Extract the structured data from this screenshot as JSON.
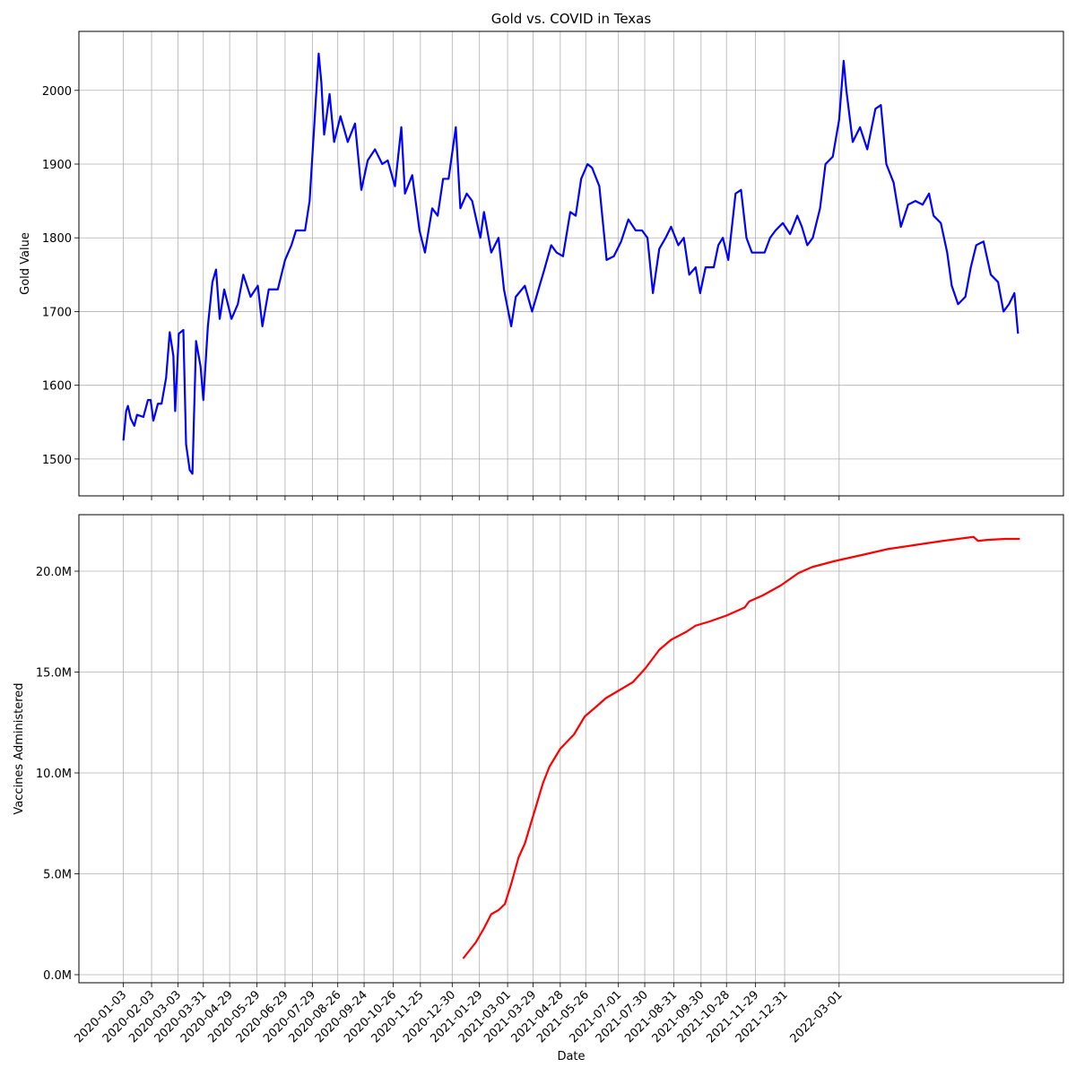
{
  "chart_data": [
    {
      "type": "line",
      "title": "Gold vs. COVID in Texas",
      "ylabel": "Gold Value",
      "grid": true,
      "xlim": [
        "2019-11-15",
        "2022-11-03"
      ],
      "xticks": [
        "2020-01-03",
        "2020-02-03",
        "2020-03-03",
        "2020-03-31",
        "2020-04-29",
        "2020-05-29",
        "2020-06-29",
        "2020-07-29",
        "2020-08-26",
        "2020-09-24",
        "2020-10-26",
        "2020-11-25",
        "2020-12-30",
        "2021-01-29",
        "2021-03-01",
        "2021-03-29",
        "2021-04-28",
        "2021-05-26",
        "2021-07-01",
        "2021-07-30",
        "2021-08-31",
        "2021-09-30",
        "2021-10-28",
        "2021-11-29",
        "2021-12-31",
        "2022-03-01"
      ],
      "ylim": [
        1450,
        2080
      ],
      "yticks": [
        1500,
        1600,
        1700,
        1800,
        1900,
        2000
      ],
      "x": [
        "2020-01-03",
        "2020-01-06",
        "2020-01-08",
        "2020-01-11",
        "2020-01-15",
        "2020-01-18",
        "2020-01-25",
        "2020-01-30",
        "2020-02-02",
        "2020-02-05",
        "2020-02-10",
        "2020-02-14",
        "2020-02-19",
        "2020-02-23",
        "2020-02-27",
        "2020-02-29",
        "2020-03-04",
        "2020-03-09",
        "2020-03-12",
        "2020-03-16",
        "2020-03-19",
        "2020-03-23",
        "2020-03-28",
        "2020-03-31",
        "2020-04-05",
        "2020-04-10",
        "2020-04-14",
        "2020-04-18",
        "2020-04-23",
        "2020-05-01",
        "2020-05-08",
        "2020-05-14",
        "2020-05-22",
        "2020-05-30",
        "2020-06-04",
        "2020-06-11",
        "2020-06-21",
        "2020-06-29",
        "2020-07-06",
        "2020-07-11",
        "2020-07-21",
        "2020-07-26",
        "2020-07-31",
        "2020-08-05",
        "2020-08-08",
        "2020-08-11",
        "2020-08-17",
        "2020-08-22",
        "2020-08-29",
        "2020-09-06",
        "2020-09-14",
        "2020-09-21",
        "2020-09-28",
        "2020-10-06",
        "2020-10-14",
        "2020-10-20",
        "2020-10-28",
        "2020-11-04",
        "2020-11-08",
        "2020-11-16",
        "2020-11-24",
        "2020-11-30",
        "2020-12-08",
        "2020-12-14",
        "2020-12-20",
        "2020-12-26",
        "2021-01-03",
        "2021-01-08",
        "2021-01-15",
        "2021-01-21",
        "2021-01-30",
        "2021-02-03",
        "2021-02-11",
        "2021-02-19",
        "2021-02-25",
        "2021-03-05",
        "2021-03-10",
        "2021-03-20",
        "2021-03-28",
        "2021-04-04",
        "2021-04-10",
        "2021-04-18",
        "2021-04-24",
        "2021-05-01",
        "2021-05-09",
        "2021-05-15",
        "2021-05-21",
        "2021-05-28",
        "2021-06-02",
        "2021-06-10",
        "2021-06-18",
        "2021-06-26",
        "2021-07-04",
        "2021-07-12",
        "2021-07-20",
        "2021-07-27",
        "2021-08-02",
        "2021-08-08",
        "2021-08-15",
        "2021-08-22",
        "2021-08-28",
        "2021-09-05",
        "2021-09-11",
        "2021-09-17",
        "2021-09-24",
        "2021-09-29",
        "2021-10-05",
        "2021-10-14",
        "2021-10-19",
        "2021-10-24",
        "2021-10-30",
        "2021-11-07",
        "2021-11-13",
        "2021-11-19",
        "2021-11-25",
        "2021-12-03",
        "2021-12-09",
        "2021-12-15",
        "2021-12-21",
        "2021-12-29",
        "2022-01-06",
        "2022-01-14",
        "2022-01-19",
        "2022-01-25",
        "2022-01-31",
        "2022-02-08",
        "2022-02-14",
        "2022-02-22",
        "2022-03-01",
        "2022-03-06",
        "2022-03-09",
        "2022-03-16",
        "2022-03-24",
        "2022-04-01",
        "2022-04-10",
        "2022-04-16",
        "2022-04-22",
        "2022-04-30",
        "2022-05-08",
        "2022-05-16",
        "2022-05-24",
        "2022-06-01",
        "2022-06-08",
        "2022-06-13",
        "2022-06-21",
        "2022-06-28",
        "2022-07-03",
        "2022-07-10",
        "2022-07-18",
        "2022-07-24",
        "2022-07-30",
        "2022-08-07",
        "2022-08-15",
        "2022-08-23",
        "2022-08-29",
        "2022-09-04",
        "2022-09-10",
        "2022-09-14"
      ],
      "series": [
        {
          "color": "#0000ff",
          "values": [
            1525,
            1565,
            1572,
            1555,
            1545,
            1560,
            1557,
            1580,
            1580,
            1552,
            1575,
            1575,
            1610,
            1672,
            1640,
            1565,
            1670,
            1675,
            1520,
            1485,
            1480,
            1660,
            1625,
            1580,
            1680,
            1740,
            1757,
            1690,
            1730,
            1690,
            1710,
            1750,
            1720,
            1735,
            1680,
            1730,
            1730,
            1770,
            1790,
            1810,
            1810,
            1850,
            1950,
            2050,
            2010,
            1940,
            1995,
            1930,
            1965,
            1930,
            1955,
            1865,
            1905,
            1920,
            1900,
            1905,
            1870,
            1950,
            1860,
            1885,
            1810,
            1780,
            1840,
            1830,
            1880,
            1880,
            1950,
            1840,
            1860,
            1850,
            1800,
            1835,
            1780,
            1800,
            1730,
            1680,
            1720,
            1735,
            1700,
            1730,
            1755,
            1790,
            1780,
            1775,
            1835,
            1830,
            1880,
            1900,
            1895,
            1870,
            1770,
            1775,
            1795,
            1825,
            1810,
            1810,
            1800,
            1725,
            1785,
            1800,
            1815,
            1790,
            1800,
            1750,
            1760,
            1725,
            1760,
            1760,
            1790,
            1800,
            1770,
            1860,
            1865,
            1800,
            1780,
            1780,
            1780,
            1800,
            1810,
            1820,
            1805,
            1830,
            1815,
            1790,
            1800,
            1840,
            1900,
            1910,
            1960,
            2040,
            2000,
            1930,
            1950,
            1920,
            1975,
            1980,
            1900,
            1875,
            1815,
            1845,
            1850,
            1845,
            1860,
            1830,
            1820,
            1780,
            1735,
            1710,
            1720,
            1760,
            1790,
            1795,
            1750,
            1740,
            1700,
            1710,
            1725,
            1670
          ]
        }
      ]
    },
    {
      "type": "line",
      "xlabel": "Date",
      "ylabel": "Vaccines Administered",
      "grid": true,
      "xlim": [
        "2019-11-15",
        "2022-11-03"
      ],
      "xticks": [
        "2020-01-03",
        "2020-02-03",
        "2020-03-03",
        "2020-03-31",
        "2020-04-29",
        "2020-05-29",
        "2020-06-29",
        "2020-07-29",
        "2020-08-26",
        "2020-09-24",
        "2020-10-26",
        "2020-11-25",
        "2020-12-30",
        "2021-01-29",
        "2021-03-01",
        "2021-03-29",
        "2021-04-28",
        "2021-05-26",
        "2021-07-01",
        "2021-07-30",
        "2021-08-31",
        "2021-09-30",
        "2021-10-28",
        "2021-11-29",
        "2021-12-31",
        "2022-03-01"
      ],
      "ylim": [
        -400000,
        22800000
      ],
      "yticks": [
        {
          "value": 0,
          "label": "0.0M"
        },
        {
          "value": 5000000,
          "label": "5.0M"
        },
        {
          "value": 10000000,
          "label": "10.0M"
        },
        {
          "value": 15000000,
          "label": "15.0M"
        },
        {
          "value": 20000000,
          "label": "20.0M"
        }
      ],
      "x": [
        "2021-01-11",
        "2021-01-25",
        "2021-02-03",
        "2021-02-11",
        "2021-02-19",
        "2021-02-26",
        "2021-03-05",
        "2021-03-13",
        "2021-03-20",
        "2021-03-30",
        "2021-04-09",
        "2021-04-16",
        "2021-04-28",
        "2021-05-13",
        "2021-05-25",
        "2021-06-07",
        "2021-06-17",
        "2021-07-02",
        "2021-07-17",
        "2021-07-31",
        "2021-08-15",
        "2021-08-28",
        "2021-09-14",
        "2021-09-24",
        "2021-10-09",
        "2021-10-28",
        "2021-11-17",
        "2021-11-22",
        "2021-12-07",
        "2021-12-27",
        "2022-01-15",
        "2022-01-30",
        "2022-02-24",
        "2022-03-26",
        "2022-04-24",
        "2022-05-24",
        "2022-06-23",
        "2022-07-27",
        "2022-08-01",
        "2022-08-11",
        "2022-08-31",
        "2022-09-16"
      ],
      "series": [
        {
          "color": "#ff0000",
          "values": [
            800000,
            1600000,
            2300000,
            3000000,
            3200000,
            3500000,
            4500000,
            5800000,
            6500000,
            8000000,
            9500000,
            10300000,
            11200000,
            11900000,
            12800000,
            13300000,
            13700000,
            14100000,
            14500000,
            15200000,
            16100000,
            16600000,
            17000000,
            17300000,
            17500000,
            17800000,
            18200000,
            18500000,
            18800000,
            19300000,
            19900000,
            20200000,
            20500000,
            20800000,
            21100000,
            21300000,
            21500000,
            21700000,
            21500000,
            21550000,
            21600000,
            21600000
          ]
        }
      ]
    }
  ]
}
